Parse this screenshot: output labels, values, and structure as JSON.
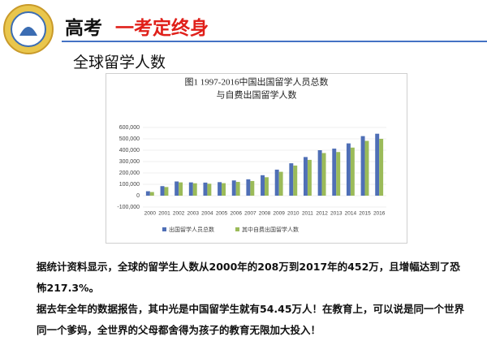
{
  "header": {
    "title": "高考",
    "slogan": "一考定终身",
    "section": "全球留学人数"
  },
  "chart_data": {
    "type": "bar",
    "title_lines": [
      "图1  1997-2016中国出国留学人员总数",
      "与自费出国留学人数"
    ],
    "categories": [
      "2000",
      "2001",
      "2002",
      "2003",
      "2004",
      "2005",
      "2006",
      "2007",
      "2008",
      "2009",
      "2010",
      "2011",
      "2012",
      "2013",
      "2014",
      "2015",
      "2016"
    ],
    "series": [
      {
        "name": "出国留学人员总数",
        "color": "#4f6fb6",
        "values": [
          39000,
          84000,
          125000,
          117000,
          115000,
          119000,
          134000,
          144000,
          180000,
          229000,
          285000,
          340000,
          400000,
          414000,
          460000,
          524000,
          545000
        ]
      },
      {
        "name": "其中自费出国留学人数",
        "color": "#9bbb59",
        "values": [
          32000,
          76000,
          117000,
          109000,
          105000,
          110000,
          121000,
          129000,
          162000,
          210000,
          265000,
          315000,
          375000,
          384000,
          423000,
          482000,
          500000
        ]
      }
    ],
    "ylim": [
      -100000,
      600000
    ],
    "yticks": [
      {
        "value": -100000,
        "label": "-100,000"
      },
      0,
      {
        "value": 100000,
        "label": "100,000"
      },
      {
        "value": 200000,
        "label": "200,000"
      },
      {
        "value": 300000,
        "label": "300,000"
      },
      {
        "value": 400000,
        "label": "400,000"
      },
      {
        "value": 500000,
        "label": "500,000"
      },
      {
        "value": 600000,
        "label": "600,000"
      }
    ],
    "grid": true
  },
  "paragraphs": [
    "据统计资料显示，全球的留学生人数从2000年的208万到2017年的452万，且增幅达到了恐怖217.3%。",
    "据去年全年的数据报告，其中光是中国留学生就有54.45万人！在教育上，可以说是同一个世界同一个爹妈，全世界的父母都舍得为孩子的教育无限加大投入！"
  ]
}
